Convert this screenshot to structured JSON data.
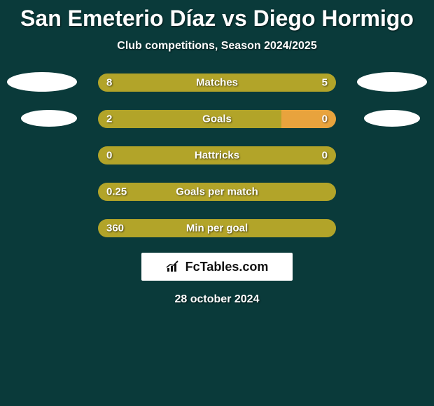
{
  "background_color": "#0a3a3a",
  "title": {
    "player1": "San Emeterio Díaz",
    "vs": "vs",
    "player2": "Diego Hormigo",
    "player1_color": "#ffffff",
    "player2_color": "#ffffff",
    "fontsize": 32
  },
  "subtitle": "Club competitions, Season 2024/2025",
  "colors": {
    "player1_bar": "#b2a429",
    "player2_bar": "#e8a33d",
    "ellipse": "#ffffff",
    "text": "#ffffff"
  },
  "bar": {
    "track_width": 340,
    "track_height": 26,
    "radius": 14
  },
  "stats": [
    {
      "label": "Matches",
      "v1": "8",
      "v2": "5",
      "p1_pct": 100,
      "show_ellipses": true
    },
    {
      "label": "Goals",
      "v1": "2",
      "v2": "0",
      "p1_pct": 77,
      "show_ellipses": true
    },
    {
      "label": "Hattricks",
      "v1": "0",
      "v2": "0",
      "p1_pct": 100,
      "show_ellipses": false
    },
    {
      "label": "Goals per match",
      "v1": "0.25",
      "v2": "",
      "p1_pct": 100,
      "show_ellipses": false
    },
    {
      "label": "Min per goal",
      "v1": "360",
      "v2": "",
      "p1_pct": 100,
      "show_ellipses": false
    }
  ],
  "branding": "FcTables.com",
  "date": "28 october 2024"
}
